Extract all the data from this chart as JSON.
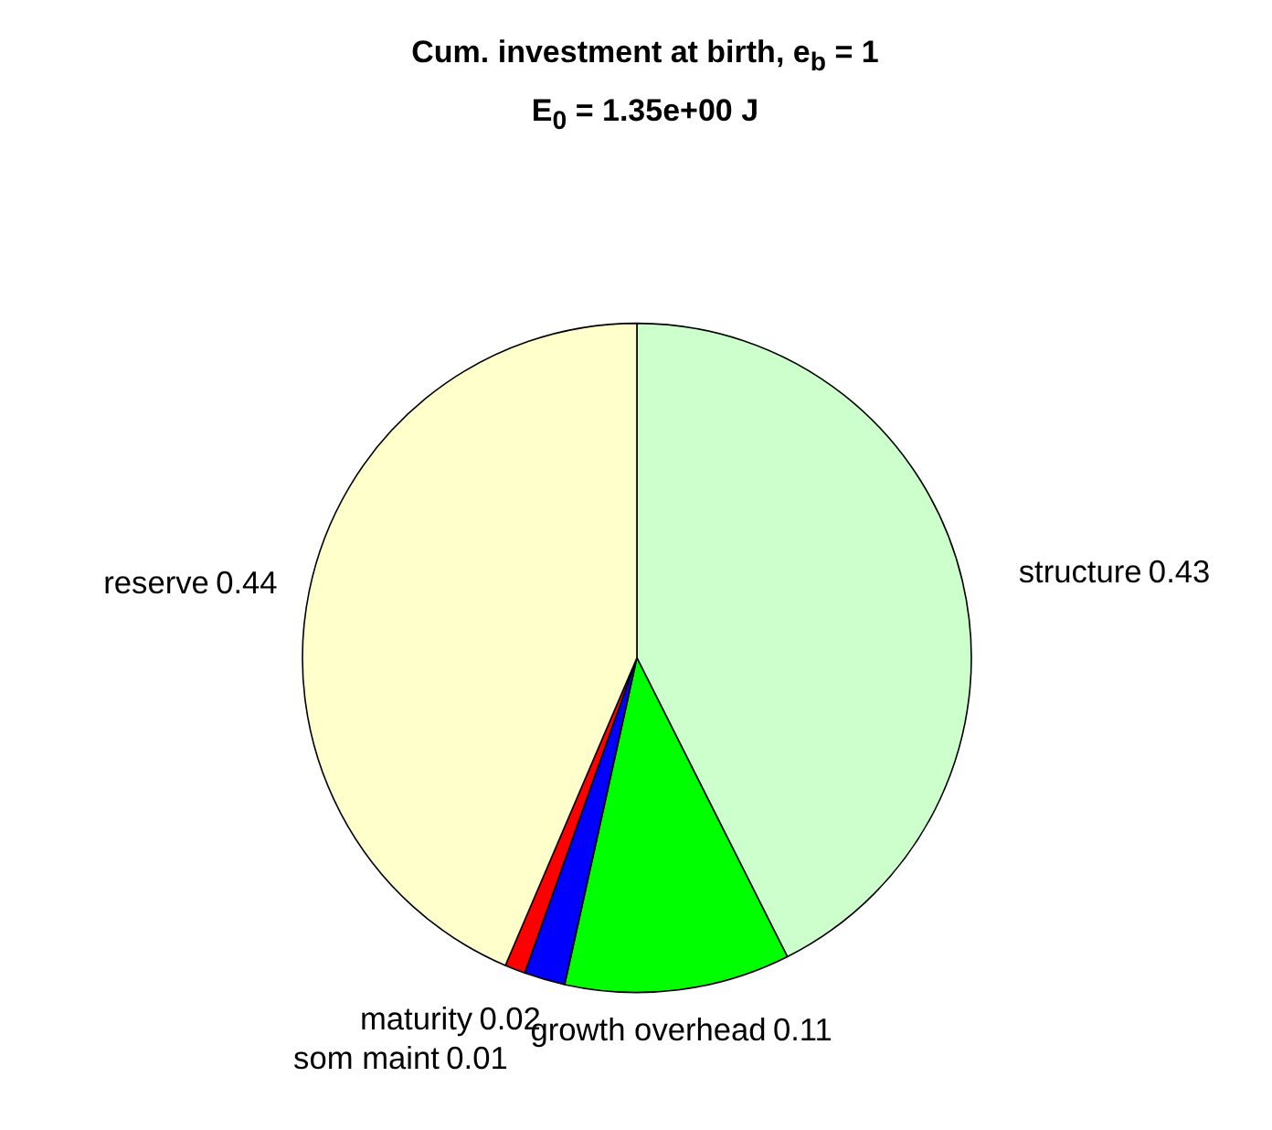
{
  "chart_data": {
    "type": "pie",
    "title": "Cum. investment at birth, e$_{b}$ = 1",
    "subtitle": "E$_{0}$ = 1.35e+00 J",
    "categories": [
      "structure",
      "growth overhead",
      "maturity",
      "som maint",
      "reserve"
    ],
    "values": [
      0.43,
      0.11,
      0.02,
      0.01,
      0.44
    ],
    "colors": [
      "#ccffcc",
      "#00ff00",
      "#0000ff",
      "#ff0000",
      "#ffffcc"
    ],
    "data_labels": true
  }
}
